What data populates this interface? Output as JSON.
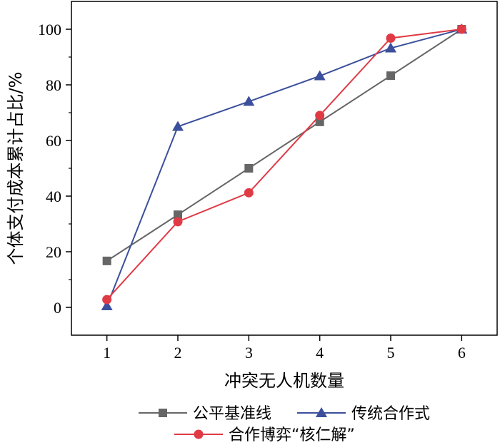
{
  "chart_data": {
    "type": "line",
    "title": "",
    "xlabel": "冲突无人机数量",
    "ylabel": "个体支付成本累计占比/%",
    "x": [
      1,
      2,
      3,
      4,
      5,
      6
    ],
    "x_ticks": [
      "1",
      "2",
      "3",
      "4",
      "5",
      "6"
    ],
    "y_ticks": [
      "0",
      "20",
      "40",
      "60",
      "80",
      "100"
    ],
    "xlim": [
      0.5,
      6.5
    ],
    "ylim": [
      -10,
      110
    ],
    "grid": false,
    "legend_position": "bottom",
    "series": [
      {
        "name": "公平基准线",
        "values": [
          16.7,
          33.3,
          50.0,
          66.7,
          83.3,
          100.0
        ],
        "color": "#666666",
        "marker": "square"
      },
      {
        "name": "传统合作式",
        "values": [
          0.5,
          65.0,
          74.0,
          83.2,
          93.2,
          100.0
        ],
        "color": "#3b4f9c",
        "marker": "triangle"
      },
      {
        "name": "合作博弈“核仁解”",
        "values": [
          2.8,
          30.8,
          41.2,
          69.0,
          96.8,
          100.0
        ],
        "color": "#e03a45",
        "marker": "circle"
      }
    ]
  }
}
